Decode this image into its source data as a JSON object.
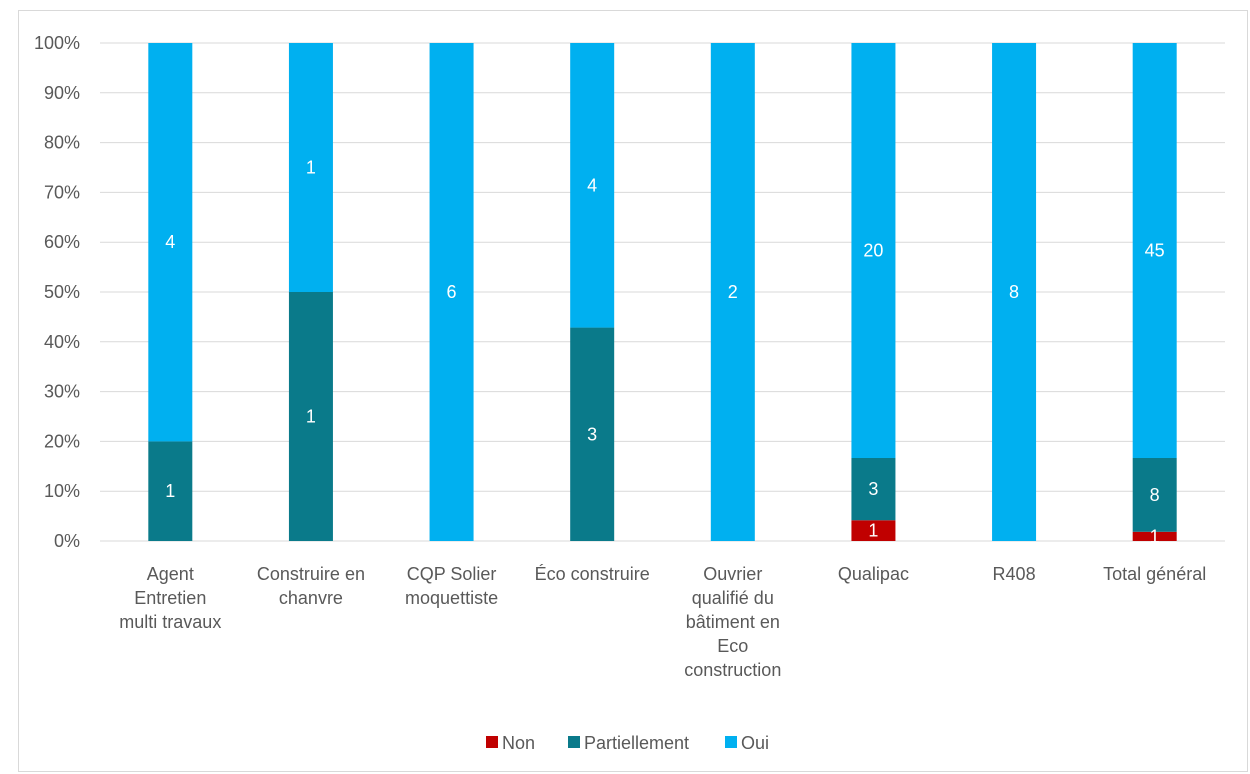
{
  "chart_data": {
    "type": "bar",
    "stacked": true,
    "percent": true,
    "categories": [
      [
        "Agent",
        "Entretien",
        "multi travaux"
      ],
      [
        "Construire en",
        "chanvre"
      ],
      [
        "CQP Solier",
        "moquettiste"
      ],
      [
        "Éco construire"
      ],
      [
        "Ouvrier",
        "qualifié du",
        "bâtiment en",
        "Eco",
        "construction"
      ],
      [
        "Qualipac"
      ],
      [
        "R408"
      ],
      [
        "Total général"
      ]
    ],
    "series": [
      {
        "name": "Non",
        "color": "#c00000",
        "values": [
          0,
          0,
          0,
          0,
          0,
          1,
          0,
          1
        ]
      },
      {
        "name": "Partiellement",
        "color": "#0a7a8a",
        "values": [
          1,
          1,
          0,
          3,
          0,
          3,
          0,
          8
        ]
      },
      {
        "name": "Oui",
        "color": "#00b0f0",
        "values": [
          4,
          1,
          6,
          4,
          2,
          20,
          8,
          45
        ]
      }
    ],
    "ylim": [
      0,
      100
    ],
    "yticks": [
      "0%",
      "10%",
      "20%",
      "30%",
      "40%",
      "50%",
      "60%",
      "70%",
      "80%",
      "90%",
      "100%"
    ],
    "grid": true,
    "legend_position": "bottom"
  }
}
